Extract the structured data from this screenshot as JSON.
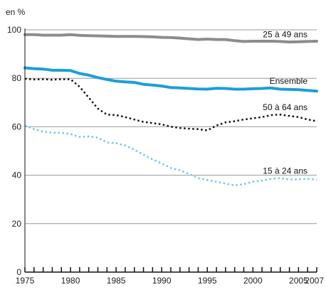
{
  "chart_data": {
    "type": "line",
    "y_unit_label": "en %",
    "title": "",
    "xlabel": "",
    "ylabel": "",
    "x": [
      1975,
      1976,
      1977,
      1978,
      1979,
      1980,
      1981,
      1982,
      1983,
      1984,
      1985,
      1986,
      1987,
      1988,
      1989,
      1990,
      1991,
      1992,
      1993,
      1994,
      1995,
      1996,
      1997,
      1998,
      1999,
      2000,
      2001,
      2002,
      2003,
      2004,
      2005,
      2006,
      2007
    ],
    "xlim": [
      1975,
      2007
    ],
    "ylim": [
      0,
      100
    ],
    "x_ticks": [
      1975,
      1980,
      1985,
      1990,
      1995,
      2000
    ],
    "x_tick_labels_right": [
      "2005",
      "2007"
    ],
    "y_ticks": [
      0,
      20,
      40,
      60,
      80,
      100
    ],
    "grid": "horizontal",
    "series": [
      {
        "name": "25 à 49 ans",
        "color": "#8c8c8c",
        "style": "solid",
        "width": 4,
        "values": [
          98.0,
          98.0,
          97.8,
          97.8,
          97.8,
          98.0,
          97.7,
          97.6,
          97.5,
          97.4,
          97.3,
          97.3,
          97.3,
          97.2,
          97.1,
          96.9,
          96.8,
          96.6,
          96.3,
          96.0,
          96.2,
          96.0,
          96.0,
          95.5,
          95.2,
          95.3,
          95.3,
          95.3,
          95.2,
          95.0,
          95.1,
          95.2,
          95.3
        ]
      },
      {
        "name": "Ensemble",
        "color": "#1a9fd9",
        "style": "solid",
        "width": 4,
        "values": [
          84.3,
          84.0,
          83.8,
          83.3,
          83.3,
          83.2,
          82.0,
          81.3,
          80.3,
          79.5,
          78.8,
          78.5,
          78.3,
          77.5,
          77.2,
          76.8,
          76.2,
          76.0,
          75.8,
          75.6,
          75.5,
          75.9,
          75.8,
          75.5,
          75.5,
          75.7,
          75.8,
          76.0,
          75.5,
          75.4,
          75.3,
          75.0,
          74.7
        ]
      },
      {
        "name": "50 à 64 ans",
        "color": "#111111",
        "style": "dotted",
        "width": 2.5,
        "values": [
          79.8,
          79.5,
          79.6,
          79.4,
          79.6,
          79.6,
          76.5,
          72.0,
          67.5,
          65.0,
          64.8,
          64.0,
          63.0,
          62.0,
          61.5,
          61.0,
          60.0,
          59.5,
          59.2,
          59.0,
          58.5,
          60.5,
          61.8,
          62.3,
          63.0,
          63.5,
          64.0,
          64.8,
          65.0,
          64.5,
          64.0,
          63.0,
          62.3
        ]
      },
      {
        "name": "15 à 24 ans",
        "color": "#6ec6ea",
        "style": "dotted",
        "width": 2.5,
        "values": [
          60.5,
          59.0,
          58.0,
          57.5,
          57.5,
          57.0,
          55.8,
          56.0,
          55.5,
          53.5,
          53.2,
          52.3,
          50.5,
          48.5,
          46.5,
          44.8,
          43.0,
          42.0,
          40.5,
          38.8,
          38.0,
          37.3,
          36.5,
          35.8,
          36.3,
          37.3,
          37.8,
          38.5,
          38.8,
          38.2,
          38.3,
          38.5,
          38.2
        ]
      }
    ]
  }
}
